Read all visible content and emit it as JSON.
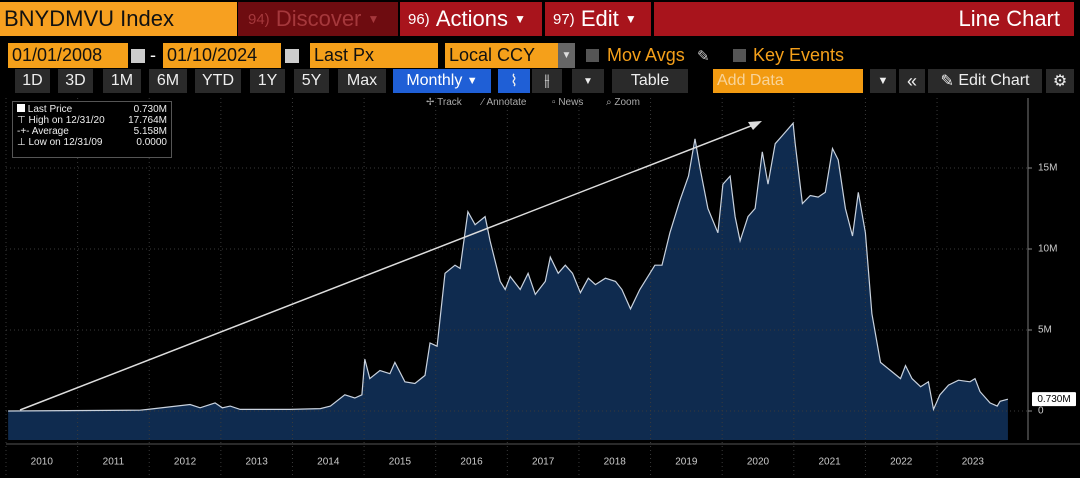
{
  "toolbar": {
    "security": "BNYDMVU Index",
    "menus": [
      {
        "num": "94)",
        "label": "Discover"
      },
      {
        "num": "96)",
        "label": "Actions"
      },
      {
        "num": "97)",
        "label": "Edit"
      }
    ],
    "view": "Line Chart"
  },
  "settings": {
    "start_date": "01/01/2008",
    "separator": "-",
    "end_date": "01/10/2024",
    "field": "Last Px",
    "currency": "Local CCY",
    "mov_avgs": "Mov Avgs",
    "key_events": "Key Events"
  },
  "controls": {
    "periods": [
      "1D",
      "3D",
      "1M",
      "6M",
      "YTD",
      "1Y",
      "5Y",
      "Max"
    ],
    "frequency": "Monthly",
    "table": "Table",
    "add_data": "Add Data",
    "edit_chart": "Edit Chart"
  },
  "chart_tools": [
    "Track",
    "Annotate",
    "News",
    "Zoom"
  ],
  "chart_data": {
    "type": "area",
    "legend_stats": [
      {
        "value": "0.730M"
      },
      {
        "label": "High on 12/31/20",
        "value": "17.764M"
      },
      {
        "label": "Average",
        "value": "5.158M"
      },
      {
        "label": "Low on 12/31/09",
        "value": "0.0000"
      }
    ],
    "last_label": "0.730M",
    "x": [
      2010.03,
      2011.87,
      2011.98,
      2012.57,
      2012.71,
      2012.92,
      2013.02,
      2013.13,
      2013.27,
      2013.55,
      2013.97,
      2014.39,
      2014.53,
      2014.73,
      2014.87,
      2014.97,
      2015.01,
      2015.08,
      2015.22,
      2015.36,
      2015.43,
      2015.57,
      2015.71,
      2015.85,
      2015.92,
      2016.02,
      2016.13,
      2016.27,
      2016.34,
      2016.45,
      2016.55,
      2016.69,
      2016.76,
      2016.9,
      2016.97,
      2017.04,
      2017.18,
      2017.29,
      2017.39,
      2017.53,
      2017.6,
      2017.71,
      2017.81,
      2017.91,
      2018.02,
      2018.13,
      2018.23,
      2018.37,
      2018.51,
      2018.6,
      2018.72,
      2018.85,
      2018.99,
      2019.06,
      2019.16,
      2019.27,
      2019.41,
      2019.53,
      2019.62,
      2019.69,
      2019.8,
      2019.94,
      2020.01,
      2020.11,
      2020.18,
      2020.25,
      2020.36,
      2020.46,
      2020.56,
      2020.64,
      2020.74,
      2020.84,
      2020.99,
      2021.02,
      2021.12,
      2021.23,
      2021.34,
      2021.44,
      2021.54,
      2021.62,
      2021.72,
      2021.82,
      2021.9,
      2022.0,
      2022.09,
      2022.21,
      2022.35,
      2022.49,
      2022.56,
      2022.65,
      2022.77,
      2022.88,
      2022.95,
      2023.04,
      2023.16,
      2023.3,
      2023.46,
      2023.53,
      2023.6,
      2023.74,
      2023.84,
      2023.88,
      2023.99
    ],
    "series": [
      {
        "name": "Last Price",
        "color": "#c9d2de",
        "fill": "#0f2b4f",
        "values": [
          0,
          0.05,
          0.1,
          0.4,
          0.2,
          0.5,
          0.2,
          0.3,
          0.1,
          0.1,
          0.1,
          0.15,
          0.3,
          1.0,
          0.8,
          1.0,
          3.2,
          2.0,
          2.5,
          2.3,
          3.0,
          1.8,
          1.7,
          2.2,
          4.2,
          4.0,
          8.5,
          9.0,
          8.8,
          12.3,
          11.5,
          12.0,
          10.5,
          8.0,
          7.5,
          8.3,
          7.5,
          8.5,
          7.2,
          8.0,
          9.5,
          8.5,
          9.0,
          8.5,
          7.3,
          8.2,
          7.8,
          8.2,
          8.0,
          7.5,
          6.3,
          7.5,
          8.5,
          9.0,
          9.0,
          11.0,
          13.0,
          14.5,
          16.8,
          15.0,
          12.5,
          11.0,
          14.0,
          14.5,
          12.0,
          10.5,
          12.0,
          12.5,
          16.0,
          14.0,
          16.5,
          17.0,
          17.764,
          16.5,
          12.8,
          13.3,
          13.2,
          13.5,
          16.2,
          15.5,
          12.5,
          10.8,
          13.5,
          11.0,
          6.0,
          3.0,
          2.5,
          2.0,
          2.8,
          2.0,
          1.5,
          1.8,
          0.1,
          1.0,
          1.6,
          1.9,
          1.8,
          2.0,
          1.2,
          0.5,
          0.3,
          0.6,
          0.73
        ]
      }
    ],
    "xlim": [
      2010,
      2024.27
    ],
    "ylim": [
      -1.79,
      19.32
    ],
    "xticks": [
      {
        "value": 2010,
        "label": "2010"
      },
      {
        "value": 2011,
        "label": "2011"
      },
      {
        "value": 2012,
        "label": "2012"
      },
      {
        "value": 2013,
        "label": "2013"
      },
      {
        "value": 2014,
        "label": "2014"
      },
      {
        "value": 2015,
        "label": "2015"
      },
      {
        "value": 2016,
        "label": "2016"
      },
      {
        "value": 2017,
        "label": "2017"
      },
      {
        "value": 2018,
        "label": "2018"
      },
      {
        "value": 2019,
        "label": "2019"
      },
      {
        "value": 2020,
        "label": "2020"
      },
      {
        "value": 2021,
        "label": "2021"
      },
      {
        "value": 2022,
        "label": "2022"
      },
      {
        "value": 2023,
        "label": "2023"
      }
    ],
    "yticks": [
      0,
      {
        "value": 5,
        "label": "5M"
      },
      {
        "value": 10,
        "label": "10M"
      },
      {
        "value": 15,
        "label": "15M"
      }
    ],
    "grid": true
  }
}
